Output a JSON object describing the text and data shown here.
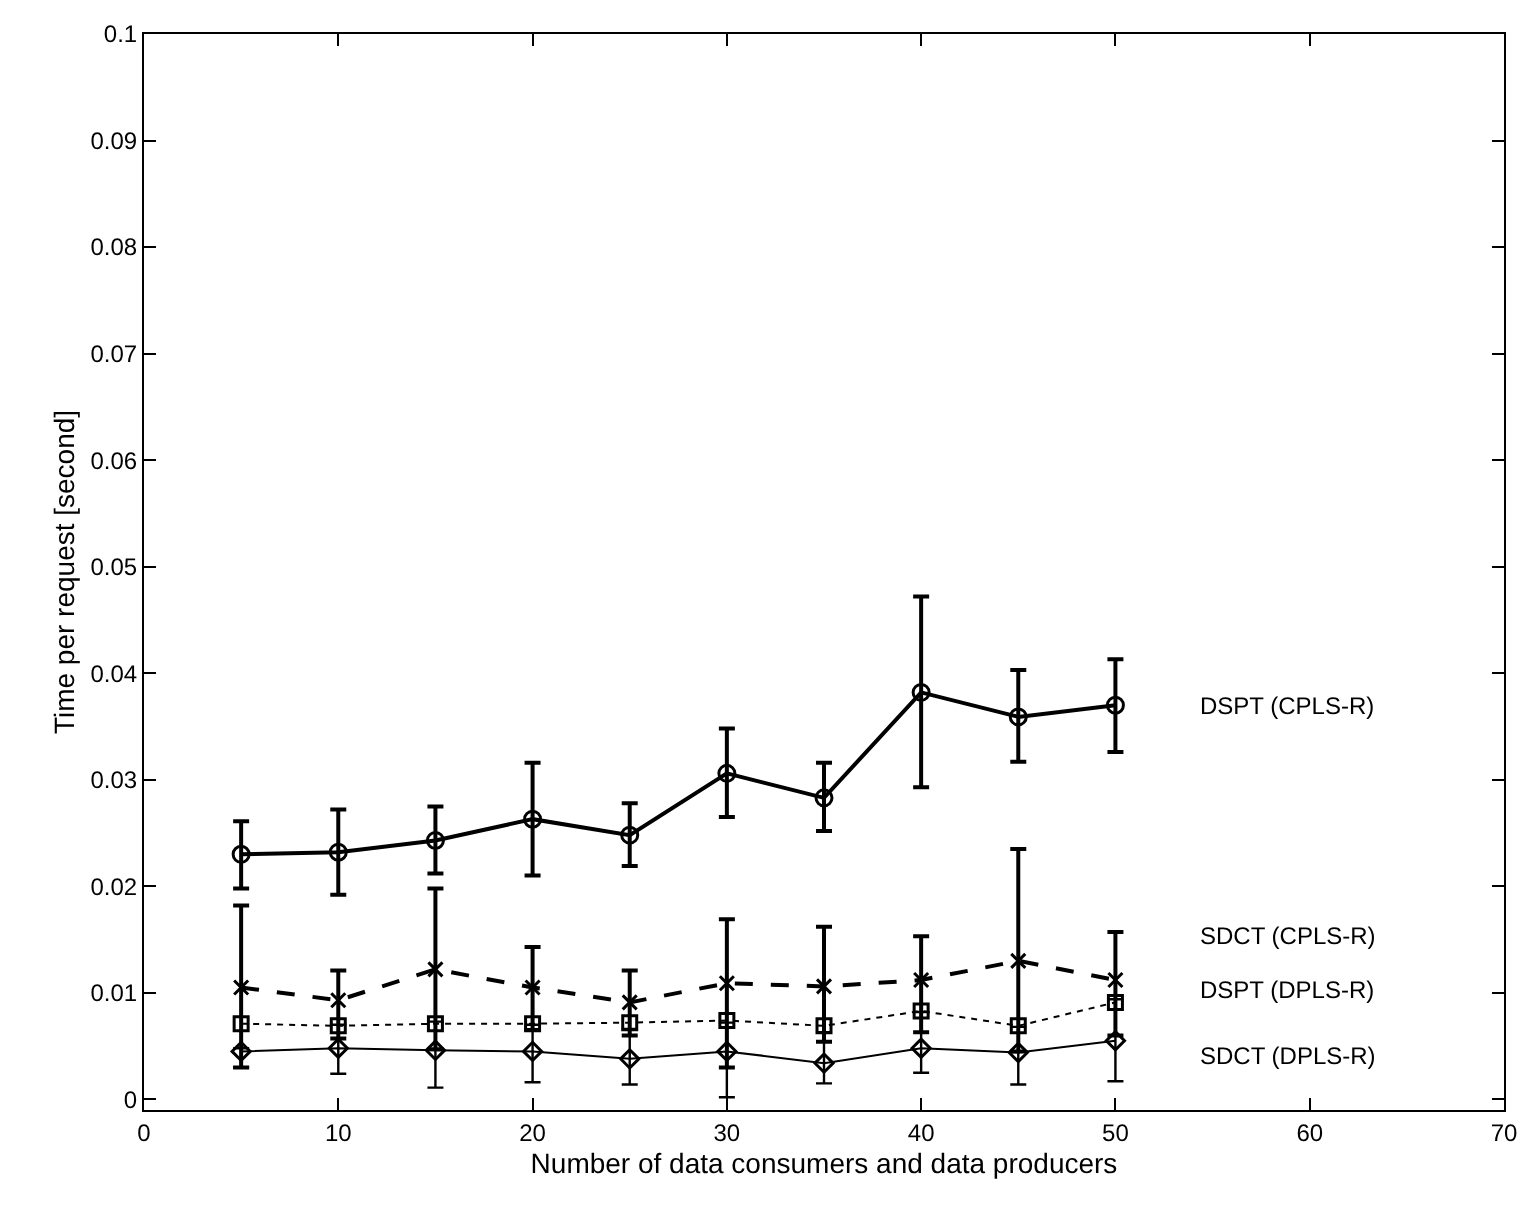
{
  "chart_data": {
    "type": "line",
    "xlabel": "Number of data consumers and data producers",
    "ylabel": "Time per request [second]",
    "x": [
      5,
      10,
      15,
      20,
      25,
      30,
      35,
      40,
      45,
      50
    ],
    "xlim": [
      0,
      70
    ],
    "xticks": [
      0,
      10,
      20,
      30,
      40,
      50,
      60,
      70
    ],
    "ylim": [
      -0.001,
      0.1
    ],
    "yticks": [
      0,
      0.01,
      0.02,
      0.03,
      0.04,
      0.05,
      0.06,
      0.07,
      0.08,
      0.09,
      0.1
    ],
    "legend": false,
    "series": [
      {
        "name": "DSPT (CPLS-R)",
        "color": "#000000",
        "marker": "circle",
        "line_style": "solid",
        "values": [
          0.023,
          0.0232,
          0.0243,
          0.0263,
          0.0248,
          0.0306,
          0.0283,
          0.0382,
          0.0359,
          0.037
        ],
        "errors": [
          [
            0.0198,
            0.0261
          ],
          [
            0.0192,
            0.0272
          ],
          [
            0.0212,
            0.0275
          ],
          [
            0.021,
            0.0316
          ],
          [
            0.0219,
            0.0278
          ],
          [
            0.0265,
            0.0348
          ],
          [
            0.0252,
            0.0316
          ],
          [
            0.0293,
            0.0472
          ],
          [
            0.0317,
            0.0403
          ],
          [
            0.0326,
            0.0413
          ]
        ]
      },
      {
        "name": "SDCT (CPLS-R)",
        "color": "#000000",
        "marker": "cross",
        "line_style": "dashed",
        "values": [
          0.0105,
          0.0093,
          0.0122,
          0.0105,
          0.0091,
          0.0109,
          0.0106,
          0.0112,
          0.013,
          0.0112
        ],
        "errors": [
          [
            0.003,
            0.0182
          ],
          [
            0.0057,
            0.0121
          ],
          [
            0.0047,
            0.0198
          ],
          [
            0.0065,
            0.0143
          ],
          [
            0.006,
            0.0121
          ],
          [
            0.003,
            0.0169
          ],
          [
            0.0054,
            0.0162
          ],
          [
            0.0063,
            0.0153
          ],
          [
            0.0045,
            0.0235
          ],
          [
            0.006,
            0.0157
          ]
        ]
      },
      {
        "name": "DSPT (DPLS-R)",
        "color": "#000000",
        "marker": "square",
        "line_style": "dotted",
        "values": [
          0.0071,
          0.0069,
          0.0071,
          0.0071,
          0.0072,
          0.0074,
          0.0069,
          0.0083,
          0.0069,
          0.0091
        ]
      },
      {
        "name": "SDCT (DPLS-R)",
        "color": "#000000",
        "marker": "diamond",
        "line_style": "solid",
        "values": [
          0.0045,
          0.0048,
          0.0046,
          0.0045,
          0.0038,
          0.0045,
          0.0034,
          0.0048,
          0.0044,
          0.0055
        ],
        "errors": [
          [
            0.003,
            0.0048
          ],
          [
            0.0024,
            0.007
          ],
          [
            0.0011,
            0.0073
          ],
          [
            0.0016,
            0.007
          ],
          [
            0.0014,
            0.0066
          ],
          [
            0.0002,
            0.0072
          ],
          [
            0.0015,
            0.0063
          ],
          [
            0.0025,
            0.0082
          ],
          [
            0.0014,
            0.0068
          ],
          [
            0.0017,
            0.0094
          ]
        ]
      }
    ]
  }
}
